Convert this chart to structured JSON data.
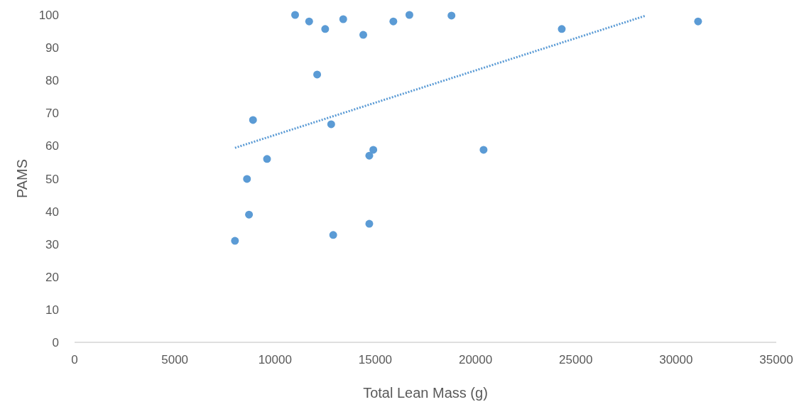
{
  "chart_data": {
    "type": "scatter",
    "xlabel": "Total Lean Mass (g)",
    "ylabel": "PAMS",
    "xlim": [
      0,
      35000
    ],
    "xticks": [
      0,
      5000,
      10000,
      15000,
      20000,
      25000,
      30000,
      35000
    ],
    "ylim": [
      0,
      100
    ],
    "yticks": [
      0,
      10,
      20,
      30,
      40,
      50,
      60,
      70,
      80,
      90,
      100
    ],
    "grid": false,
    "series": [
      {
        "color": "#5b9bd5",
        "marker": "circle",
        "x": [
          11000,
          11700,
          12500,
          13400,
          14400,
          15900,
          16700,
          18800,
          24300,
          31100,
          12100,
          8900,
          12800,
          9600,
          14900,
          14700,
          20400,
          8600,
          8700,
          8000,
          12900,
          14700
        ],
        "values": [
          100,
          98,
          95.7,
          98.7,
          93.9,
          98,
          100,
          99.8,
          95.7,
          98,
          81.8,
          67.9,
          66.6,
          56,
          58.8,
          57,
          58.8,
          49.9,
          39,
          31,
          32.8,
          36.2
        ]
      },
      {
        "type": "line",
        "color": "#5b9bd5",
        "line_style": "dotted",
        "marker": "none",
        "x": [
          8000,
          28500
        ],
        "values": [
          59.4,
          99.8
        ]
      }
    ]
  }
}
